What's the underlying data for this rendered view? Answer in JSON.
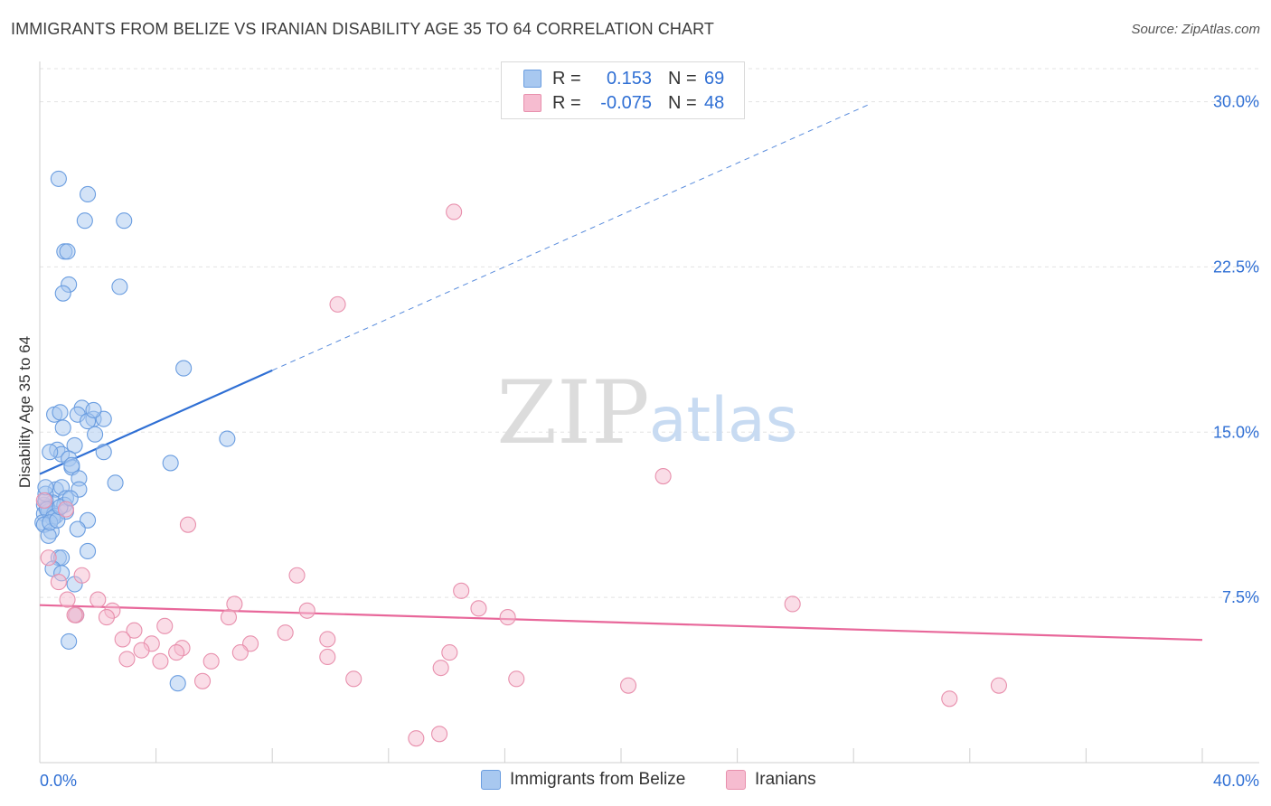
{
  "title": "IMMIGRANTS FROM BELIZE VS IRANIAN DISABILITY AGE 35 TO 64 CORRELATION CHART",
  "source": "Source: ZipAtlas.com",
  "watermark": {
    "zip": "ZIP",
    "atlas": "atlas"
  },
  "colors": {
    "blue_fill": "#a8c8f0",
    "blue_stroke": "#6a9de0",
    "blue_line": "#2f6fd4",
    "pink_fill": "#f6bcd0",
    "pink_stroke": "#e890ad",
    "pink_line": "#e8679a",
    "value_text": "#2f6fd4",
    "grid": "#e3e3e3"
  },
  "legend": {
    "rows": [
      {
        "series": "blue",
        "r_label": "R =",
        "r_value": "0.153",
        "n_label": "N =",
        "n_value": "69"
      },
      {
        "series": "pink",
        "r_label": "R =",
        "r_value": "-0.075",
        "n_label": "N =",
        "n_value": "48"
      }
    ]
  },
  "bottom_legend": [
    {
      "series": "blue",
      "label": "Immigrants from Belize"
    },
    {
      "series": "pink",
      "label": "Iranians"
    }
  ],
  "chart_data": {
    "type": "scatter",
    "title": "IMMIGRANTS FROM BELIZE VS IRANIAN DISABILITY AGE 35 TO 64 CORRELATION CHART",
    "xlabel": "",
    "ylabel": "Disability Age 35 to 64",
    "xlim": [
      0,
      40
    ],
    "ylim": [
      0,
      31.5
    ],
    "x_tick_labels": [
      "0.0%",
      "40.0%"
    ],
    "y_ticks": [
      7.5,
      15.0,
      22.5,
      30.0
    ],
    "y_tick_labels": [
      "7.5%",
      "15.0%",
      "22.5%",
      "30.0%"
    ],
    "grid": true,
    "series": [
      {
        "name": "Immigrants from Belize",
        "color": "blue",
        "points": [
          [
            0.65,
            26.5
          ],
          [
            1.65,
            25.8
          ],
          [
            1.55,
            24.6
          ],
          [
            2.9,
            24.6
          ],
          [
            0.85,
            23.2
          ],
          [
            0.95,
            23.2
          ],
          [
            1.0,
            21.7
          ],
          [
            0.8,
            21.3
          ],
          [
            2.75,
            21.6
          ],
          [
            4.95,
            17.9
          ],
          [
            6.45,
            14.7
          ],
          [
            0.5,
            15.8
          ],
          [
            0.7,
            15.9
          ],
          [
            1.45,
            16.1
          ],
          [
            1.3,
            15.8
          ],
          [
            1.85,
            15.6
          ],
          [
            1.65,
            15.5
          ],
          [
            2.2,
            15.6
          ],
          [
            1.85,
            16.0
          ],
          [
            0.8,
            15.2
          ],
          [
            1.9,
            14.9
          ],
          [
            1.2,
            14.4
          ],
          [
            0.6,
            14.2
          ],
          [
            0.75,
            14.0
          ],
          [
            0.35,
            14.1
          ],
          [
            2.2,
            14.1
          ],
          [
            1.0,
            13.8
          ],
          [
            1.1,
            13.4
          ],
          [
            1.1,
            13.5
          ],
          [
            4.5,
            13.6
          ],
          [
            1.35,
            12.9
          ],
          [
            2.6,
            12.7
          ],
          [
            0.55,
            12.4
          ],
          [
            0.75,
            12.5
          ],
          [
            1.35,
            12.4
          ],
          [
            0.9,
            12.0
          ],
          [
            0.45,
            11.8
          ],
          [
            0.25,
            11.6
          ],
          [
            0.15,
            11.7
          ],
          [
            0.15,
            11.3
          ],
          [
            0.3,
            11.4
          ],
          [
            0.5,
            11.3
          ],
          [
            0.85,
            11.7
          ],
          [
            0.2,
            12.2
          ],
          [
            0.2,
            11.9
          ],
          [
            0.25,
            11.5
          ],
          [
            0.55,
            11.2
          ],
          [
            0.9,
            11.4
          ],
          [
            0.45,
            11.1
          ],
          [
            1.65,
            11.0
          ],
          [
            0.1,
            10.9
          ],
          [
            0.15,
            10.8
          ],
          [
            0.4,
            10.5
          ],
          [
            0.3,
            10.3
          ],
          [
            1.3,
            10.6
          ],
          [
            1.65,
            9.6
          ],
          [
            0.65,
            9.3
          ],
          [
            0.75,
            9.3
          ],
          [
            0.45,
            8.8
          ],
          [
            0.75,
            8.6
          ],
          [
            1.2,
            8.1
          ],
          [
            1.25,
            6.7
          ],
          [
            1.0,
            5.5
          ],
          [
            4.75,
            3.6
          ],
          [
            0.2,
            12.5
          ],
          [
            0.35,
            10.9
          ],
          [
            0.6,
            11.0
          ],
          [
            0.7,
            11.6
          ],
          [
            1.05,
            12.0
          ]
        ]
      },
      {
        "name": "Iranians",
        "color": "pink",
        "points": [
          [
            14.25,
            25.0
          ],
          [
            10.25,
            20.8
          ],
          [
            21.45,
            13.0
          ],
          [
            5.1,
            10.8
          ],
          [
            0.3,
            9.3
          ],
          [
            0.65,
            8.2
          ],
          [
            1.45,
            8.5
          ],
          [
            8.85,
            8.5
          ],
          [
            14.5,
            7.8
          ],
          [
            0.95,
            7.4
          ],
          [
            2.0,
            7.4
          ],
          [
            6.7,
            7.2
          ],
          [
            15.1,
            7.0
          ],
          [
            25.9,
            7.2
          ],
          [
            2.5,
            6.9
          ],
          [
            9.2,
            6.9
          ],
          [
            16.1,
            6.6
          ],
          [
            1.25,
            6.7
          ],
          [
            2.3,
            6.6
          ],
          [
            6.5,
            6.6
          ],
          [
            4.3,
            6.2
          ],
          [
            3.25,
            6.0
          ],
          [
            8.45,
            5.9
          ],
          [
            2.85,
            5.6
          ],
          [
            3.85,
            5.4
          ],
          [
            4.9,
            5.2
          ],
          [
            7.25,
            5.4
          ],
          [
            9.9,
            5.6
          ],
          [
            3.5,
            5.1
          ],
          [
            4.7,
            5.0
          ],
          [
            6.9,
            5.0
          ],
          [
            14.1,
            5.0
          ],
          [
            3.0,
            4.7
          ],
          [
            4.15,
            4.6
          ],
          [
            5.9,
            4.6
          ],
          [
            9.9,
            4.8
          ],
          [
            13.8,
            4.3
          ],
          [
            5.6,
            3.7
          ],
          [
            10.8,
            3.8
          ],
          [
            16.4,
            3.8
          ],
          [
            20.25,
            3.5
          ],
          [
            1.2,
            6.7
          ],
          [
            33.0,
            3.5
          ],
          [
            31.3,
            2.9
          ],
          [
            12.95,
            1.1
          ],
          [
            13.75,
            1.3
          ],
          [
            0.15,
            11.9
          ],
          [
            0.9,
            11.5
          ]
        ]
      }
    ],
    "trend_lines": [
      {
        "series": "Immigrants from Belize",
        "solid_x": [
          0,
          8
        ],
        "dashed_x": [
          8,
          28.6
        ],
        "y_at_x0": 13.1,
        "slope": 0.588
      },
      {
        "series": "Iranians",
        "solid_x": [
          0,
          40
        ],
        "y_at_x0": 7.15,
        "slope": -0.0395
      }
    ]
  }
}
